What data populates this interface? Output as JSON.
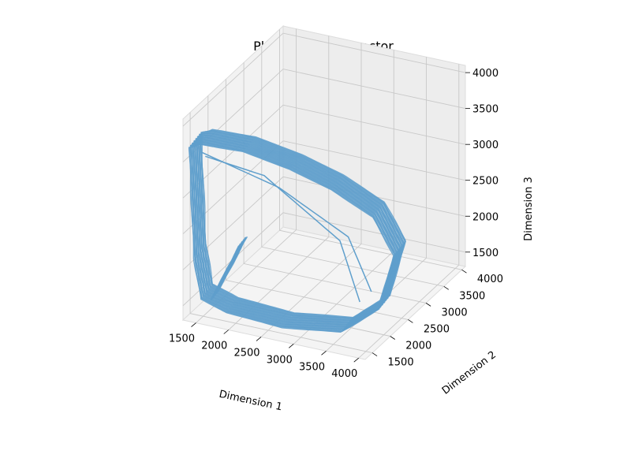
{
  "chart_data": {
    "type": "line",
    "projection": "3d",
    "title": "Phase Space Attractor",
    "xlabel": "Dimension 1",
    "ylabel": "Dimension 2",
    "zlabel": "Dimension 3",
    "xlim": [
      1300,
      4100
    ],
    "ylim": [
      1300,
      4100
    ],
    "zlim": [
      1300,
      4100
    ],
    "xticks": [
      "1500",
      "2000",
      "2500",
      "3000",
      "3500",
      "4000"
    ],
    "yticks": [
      "1500",
      "2000",
      "2500",
      "3000",
      "3500",
      "4000"
    ],
    "zticks": [
      "1500",
      "2000",
      "2500",
      "3000",
      "3500",
      "4000"
    ],
    "grid": true,
    "color": "#5f9fcc",
    "series": [
      {
        "points": [
          [
            1350,
            1550,
            3700
          ],
          [
            1500,
            1600,
            3750
          ],
          [
            2100,
            1700,
            3720
          ],
          [
            2700,
            1900,
            3500
          ],
          [
            3200,
            2150,
            3200
          ],
          [
            3700,
            2400,
            2800
          ],
          [
            4000,
            2450,
            2300
          ],
          [
            4000,
            2000,
            1750
          ],
          [
            3600,
            1700,
            1500
          ],
          [
            2800,
            1500,
            1500
          ],
          [
            2000,
            1400,
            1600
          ],
          [
            1600,
            1420,
            1700
          ],
          [
            1450,
            1500,
            2200
          ],
          [
            1400,
            1520,
            3000
          ],
          [
            1350,
            1550,
            3700
          ]
        ]
      },
      {
        "points": [
          [
            1700,
            1450,
            1650
          ],
          [
            1900,
            1600,
            2100
          ],
          [
            2000,
            1700,
            2350
          ]
        ]
      }
    ]
  }
}
